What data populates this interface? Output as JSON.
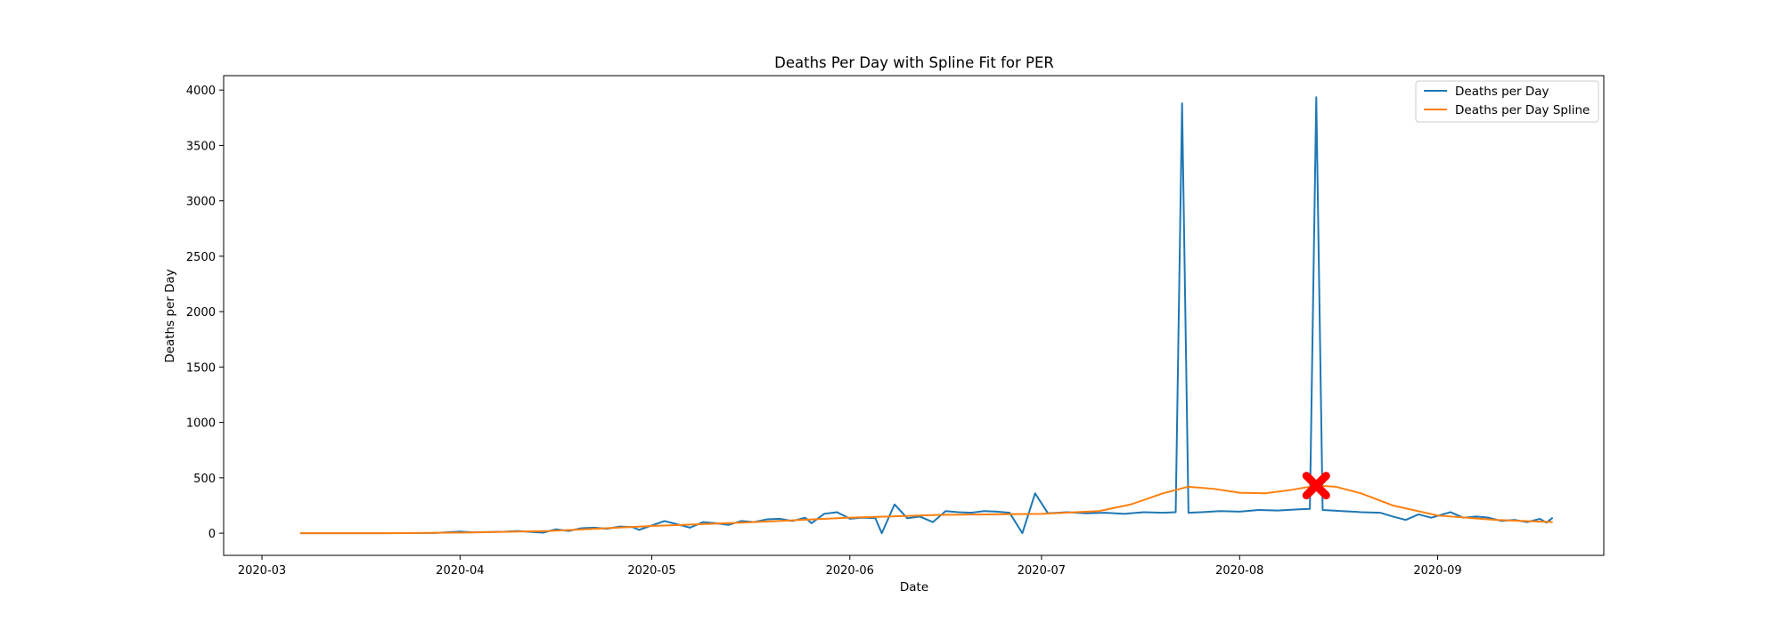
{
  "chart_data": {
    "type": "line",
    "title": "Deaths Per Day with Spline Fit for PER",
    "xlabel": "Date",
    "ylabel": "Deaths per Day",
    "xlim": [
      "2020-02-24",
      "2020-09-27"
    ],
    "ylim": [
      -200,
      4130
    ],
    "x_ticks": [
      "2020-03",
      "2020-04",
      "2020-05",
      "2020-06",
      "2020-07",
      "2020-08",
      "2020-09"
    ],
    "y_ticks": [
      0,
      500,
      1000,
      1500,
      2000,
      2500,
      3000,
      3500,
      4000
    ],
    "grid": false,
    "legend_position": "top-right",
    "colors": {
      "deaths": "#1f77b4",
      "spline": "#ff7f0e",
      "marker": "#ff0000"
    },
    "series": [
      {
        "name": "Deaths per Day",
        "points": [
          [
            "2020-03-07",
            0
          ],
          [
            "2020-03-20",
            0
          ],
          [
            "2020-03-28",
            2
          ],
          [
            "2020-04-01",
            15
          ],
          [
            "2020-04-03",
            8
          ],
          [
            "2020-04-05",
            10
          ],
          [
            "2020-04-08",
            14
          ],
          [
            "2020-04-10",
            20
          ],
          [
            "2020-04-12",
            12
          ],
          [
            "2020-04-14",
            5
          ],
          [
            "2020-04-16",
            35
          ],
          [
            "2020-04-18",
            20
          ],
          [
            "2020-04-20",
            45
          ],
          [
            "2020-04-22",
            50
          ],
          [
            "2020-04-24",
            40
          ],
          [
            "2020-04-26",
            60
          ],
          [
            "2020-04-28",
            55
          ],
          [
            "2020-04-29",
            30
          ],
          [
            "2020-05-01",
            70
          ],
          [
            "2020-05-03",
            110
          ],
          [
            "2020-05-05",
            80
          ],
          [
            "2020-05-07",
            50
          ],
          [
            "2020-05-09",
            100
          ],
          [
            "2020-05-11",
            90
          ],
          [
            "2020-05-13",
            75
          ],
          [
            "2020-05-15",
            110
          ],
          [
            "2020-05-17",
            100
          ],
          [
            "2020-05-19",
            125
          ],
          [
            "2020-05-21",
            130
          ],
          [
            "2020-05-23",
            110
          ],
          [
            "2020-05-25",
            140
          ],
          [
            "2020-05-26",
            90
          ],
          [
            "2020-05-28",
            175
          ],
          [
            "2020-05-30",
            190
          ],
          [
            "2020-06-01",
            130
          ],
          [
            "2020-06-03",
            140
          ],
          [
            "2020-06-05",
            135
          ],
          [
            "2020-06-06",
            0
          ],
          [
            "2020-06-08",
            260
          ],
          [
            "2020-06-10",
            135
          ],
          [
            "2020-06-12",
            150
          ],
          [
            "2020-06-14",
            100
          ],
          [
            "2020-06-16",
            200
          ],
          [
            "2020-06-18",
            190
          ],
          [
            "2020-06-20",
            185
          ],
          [
            "2020-06-22",
            200
          ],
          [
            "2020-06-24",
            195
          ],
          [
            "2020-06-26",
            185
          ],
          [
            "2020-06-28",
            0
          ],
          [
            "2020-06-30",
            360
          ],
          [
            "2020-07-02",
            180
          ],
          [
            "2020-07-05",
            190
          ],
          [
            "2020-07-08",
            180
          ],
          [
            "2020-07-11",
            185
          ],
          [
            "2020-07-14",
            175
          ],
          [
            "2020-07-17",
            190
          ],
          [
            "2020-07-20",
            185
          ],
          [
            "2020-07-22",
            190
          ],
          [
            "2020-07-23",
            3880
          ],
          [
            "2020-07-24",
            185
          ],
          [
            "2020-07-26",
            190
          ],
          [
            "2020-07-29",
            200
          ],
          [
            "2020-08-01",
            195
          ],
          [
            "2020-08-04",
            210
          ],
          [
            "2020-08-07",
            205
          ],
          [
            "2020-08-10",
            215
          ],
          [
            "2020-08-12",
            220
          ],
          [
            "2020-08-13",
            3935
          ],
          [
            "2020-08-14",
            210
          ],
          [
            "2020-08-17",
            200
          ],
          [
            "2020-08-20",
            190
          ],
          [
            "2020-08-23",
            185
          ],
          [
            "2020-08-25",
            150
          ],
          [
            "2020-08-27",
            120
          ],
          [
            "2020-08-29",
            170
          ],
          [
            "2020-08-31",
            140
          ],
          [
            "2020-09-03",
            190
          ],
          [
            "2020-09-05",
            140
          ],
          [
            "2020-09-07",
            150
          ],
          [
            "2020-09-09",
            140
          ],
          [
            "2020-09-11",
            110
          ],
          [
            "2020-09-13",
            120
          ],
          [
            "2020-09-15",
            100
          ],
          [
            "2020-09-17",
            130
          ],
          [
            "2020-09-18",
            95
          ],
          [
            "2020-09-19",
            140
          ]
        ]
      },
      {
        "name": "Deaths per Day Spline",
        "points": [
          [
            "2020-03-07",
            0
          ],
          [
            "2020-03-20",
            0
          ],
          [
            "2020-04-01",
            5
          ],
          [
            "2020-04-15",
            20
          ],
          [
            "2020-05-01",
            65
          ],
          [
            "2020-05-15",
            95
          ],
          [
            "2020-06-01",
            140
          ],
          [
            "2020-06-15",
            165
          ],
          [
            "2020-07-01",
            175
          ],
          [
            "2020-07-10",
            200
          ],
          [
            "2020-07-15",
            260
          ],
          [
            "2020-07-20",
            360
          ],
          [
            "2020-07-24",
            420
          ],
          [
            "2020-07-28",
            400
          ],
          [
            "2020-08-01",
            365
          ],
          [
            "2020-08-05",
            360
          ],
          [
            "2020-08-09",
            390
          ],
          [
            "2020-08-13",
            430
          ],
          [
            "2020-08-16",
            420
          ],
          [
            "2020-08-20",
            360
          ],
          [
            "2020-08-25",
            250
          ],
          [
            "2020-09-01",
            160
          ],
          [
            "2020-09-10",
            120
          ],
          [
            "2020-09-19",
            100
          ]
        ]
      }
    ],
    "marker": {
      "x": "2020-08-13",
      "y": 430
    }
  }
}
